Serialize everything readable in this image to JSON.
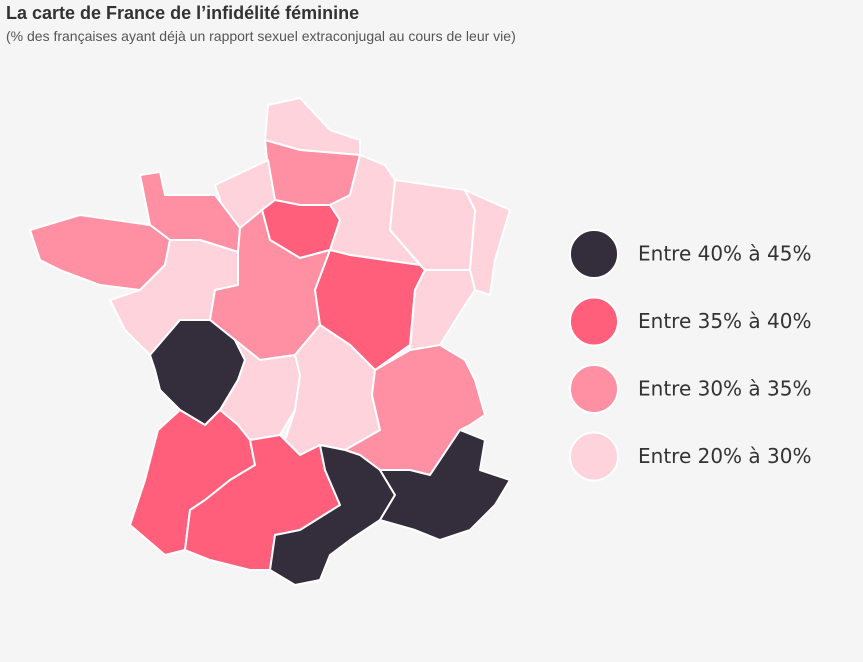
{
  "header": {
    "title": "La carte de France de l’infidélité féminine",
    "subtitle": "(% des françaises ayant déjà un rapport sexuel extraconjugal au cours de leur vie)"
  },
  "legend": [
    {
      "label": "Entre 40% à 45%",
      "color": "#342d3b"
    },
    {
      "label": "Entre 35% à 40%",
      "color": "#ff5f7a"
    },
    {
      "label": "Entre 30% à 35%",
      "color": "#ff8fa3"
    },
    {
      "label": "Entre 20% à 30%",
      "color": "#ffd3dc"
    }
  ]
}
